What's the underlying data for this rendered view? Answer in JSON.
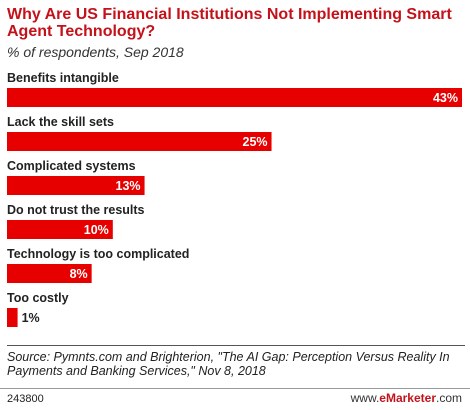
{
  "header": {
    "title": "Why Are US Financial Institutions Not Implementing Smart Agent Technology?",
    "subtitle": "% of respondents, Sep 2018"
  },
  "chart_data": {
    "type": "bar",
    "orientation": "horizontal",
    "title": "Why Are US Financial Institutions Not Implementing Smart Agent Technology?",
    "subtitle": "% of respondents, Sep 2018",
    "categories": [
      "Benefits intangible",
      "Lack the skill sets",
      "Complicated systems",
      "Do not trust the results",
      "Technology is too complicated",
      "Too costly"
    ],
    "values": [
      43,
      25,
      13,
      10,
      8,
      1
    ],
    "value_labels": [
      "43%",
      "25%",
      "13%",
      "10%",
      "8%",
      "1%"
    ],
    "unit": "%",
    "xlim": [
      0,
      43
    ],
    "bar_color": "#e60000",
    "grid": false,
    "legend": "none"
  },
  "footer": {
    "source": "Source: Pymnts.com and Brighterion, \"The AI Gap: Perception Versus Reality In Payments and Banking Services,\" Nov 8, 2018",
    "chart_id": "243800",
    "brand_prefix": "www.",
    "brand_name": "eMarketer",
    "brand_suffix": ".com"
  }
}
